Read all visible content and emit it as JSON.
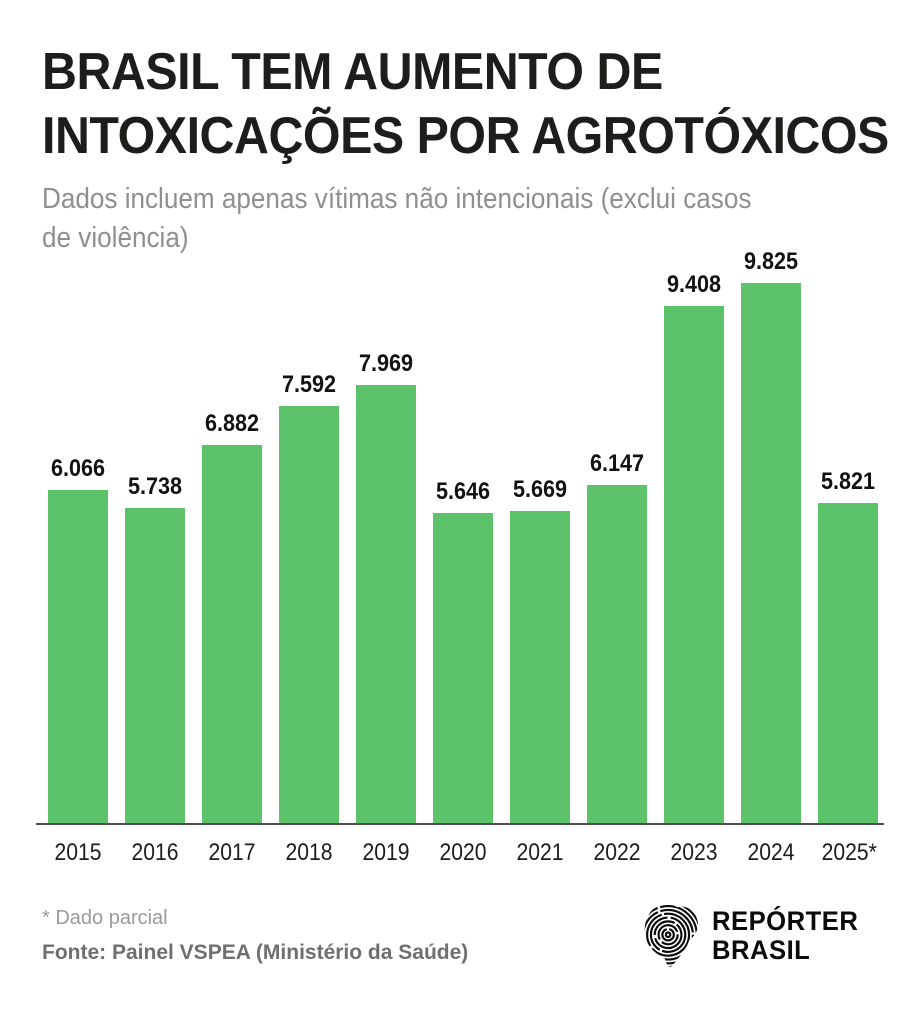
{
  "header": {
    "title_lines": [
      "BRASIL TEM AUMENTO DE",
      "INTOXICAÇÕES POR AGROTÓXICOS"
    ],
    "subtitle_lines": [
      "Dados incluem apenas vítimas não intencionais (exclui casos",
      "de violência)"
    ]
  },
  "chart_data": {
    "type": "bar",
    "title": "Brasil tem aumento de intoxicações por agrotóxicos",
    "subtitle": "Dados incluem apenas vítimas não intencionais (exclui casos de violência)",
    "categories": [
      "2015",
      "2016",
      "2017",
      "2018",
      "2019",
      "2020",
      "2021",
      "2022",
      "2023",
      "2024",
      "2025*"
    ],
    "values": [
      6066,
      5738,
      6882,
      7592,
      7969,
      5646,
      5669,
      6147,
      9408,
      9825,
      5821
    ],
    "value_labels": [
      "6.066",
      "5.738",
      "6.882",
      "7.592",
      "7.969",
      "5.646",
      "5.669",
      "6.147",
      "9.408",
      "9.825",
      "5.821"
    ],
    "xlabel": "",
    "ylabel": "",
    "ylim": [
      0,
      9825
    ],
    "grid": false,
    "legend": false,
    "bar_color": "#5cc36b",
    "data_labels": true
  },
  "footer": {
    "note": "* Dado parcial",
    "source": "Fonte: Painel VSPEA (Ministério da Saúde)",
    "logo_lines": [
      "REPÓRTER",
      "BRASIL"
    ]
  },
  "colors": {
    "bar": "#5cc36b",
    "title": "#1d1d1b",
    "subtitle": "#8f8f8f",
    "axis_line": "#4d4d4d",
    "note": "#9a9a9a",
    "source": "#6f6f6f",
    "logo": "#0b0b0b"
  }
}
